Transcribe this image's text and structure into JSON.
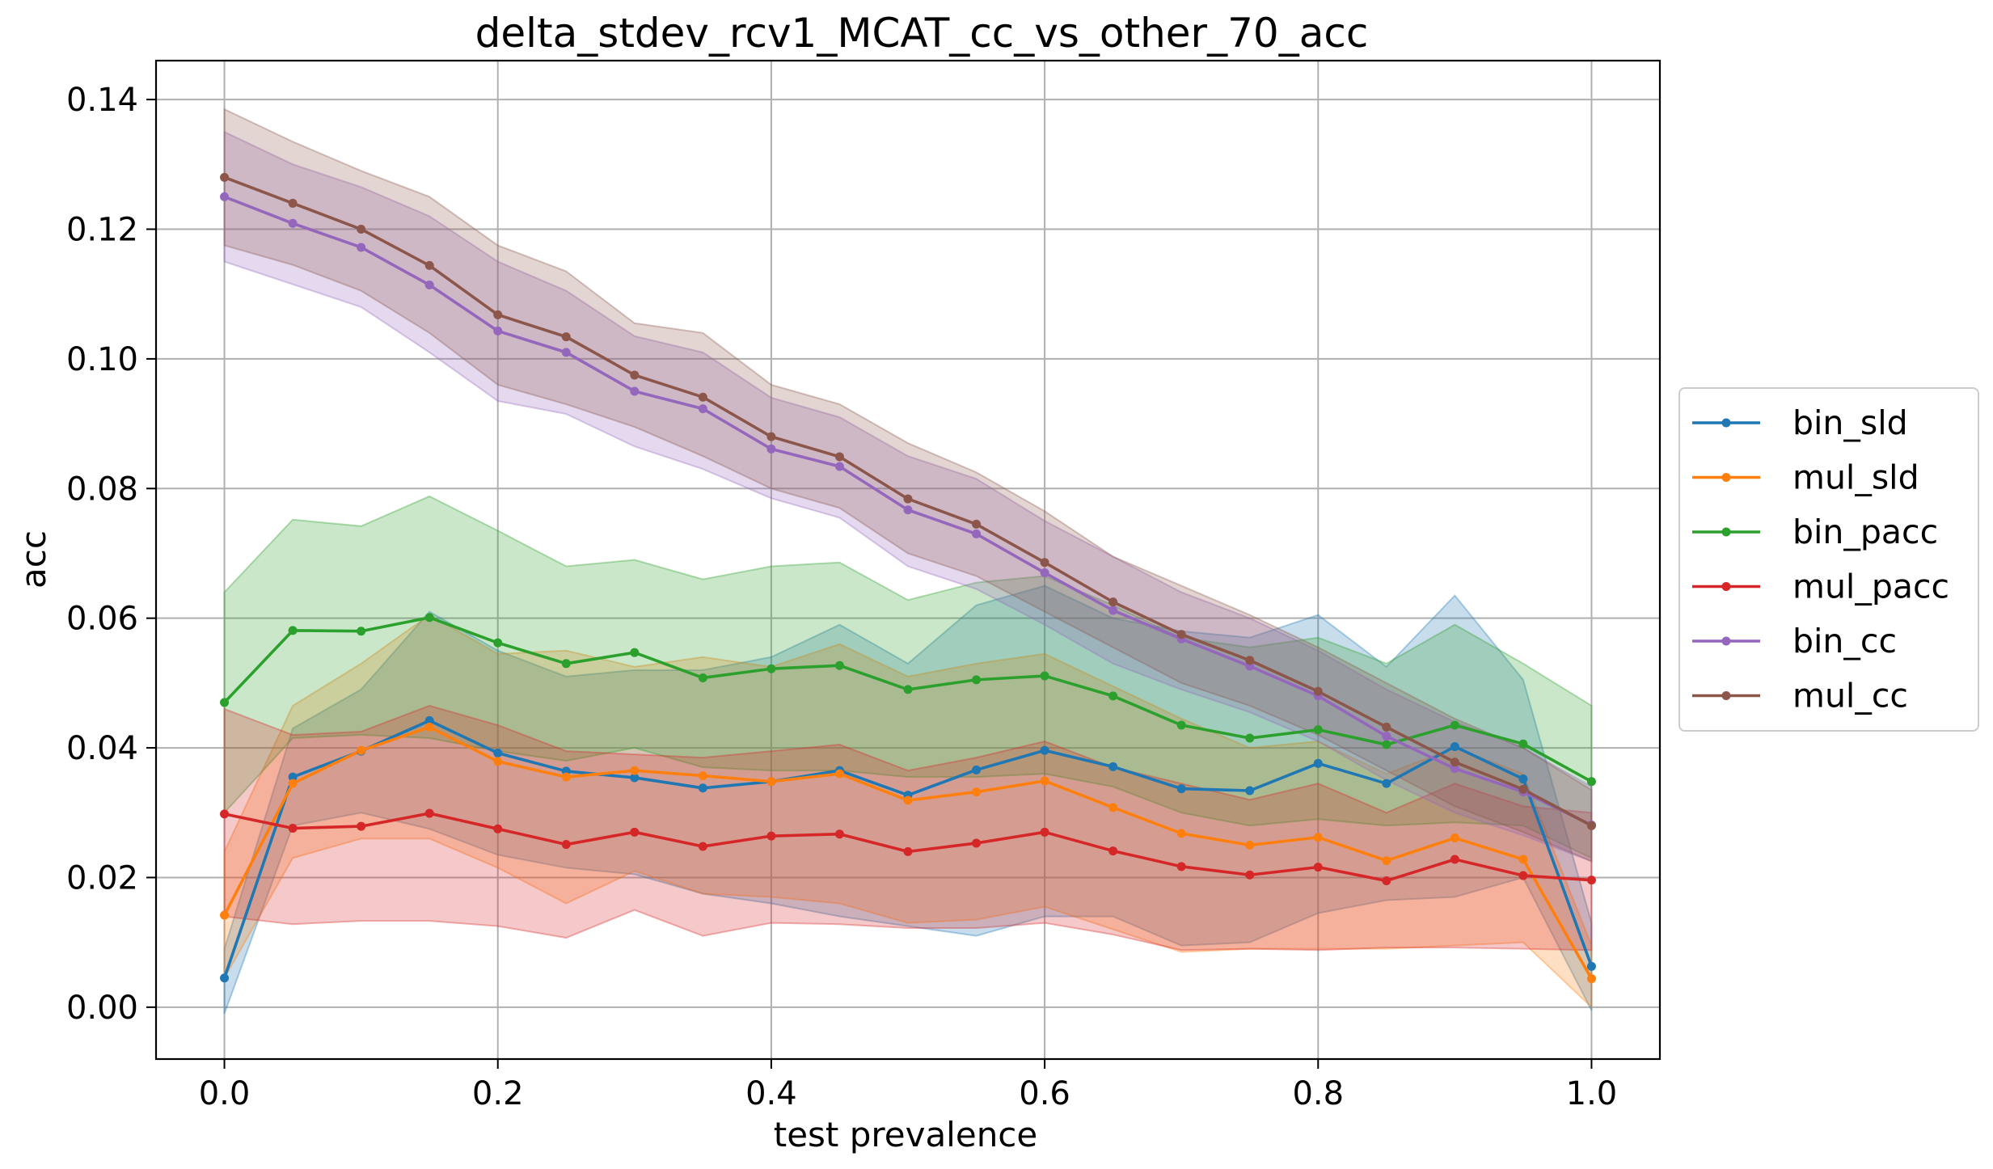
{
  "chart_data": {
    "type": "line",
    "title": "delta_stdev_rcv1_MCAT_cc_vs_other_70_acc",
    "xlabel": "test prevalence",
    "ylabel": "acc",
    "xlim": [
      -0.05,
      1.05
    ],
    "ylim": [
      -0.008,
      0.146
    ],
    "x_ticks": [
      0.0,
      0.2,
      0.4,
      0.6,
      0.8,
      1.0
    ],
    "x_tick_labels": [
      "0.0",
      "0.2",
      "0.4",
      "0.6",
      "0.8",
      "1.0"
    ],
    "y_ticks": [
      0.0,
      0.02,
      0.04,
      0.06,
      0.08,
      0.1,
      0.12,
      0.14
    ],
    "y_tick_labels": [
      "0.00",
      "0.02",
      "0.04",
      "0.06",
      "0.08",
      "0.10",
      "0.12",
      "0.14"
    ],
    "grid": true,
    "legend_position": "center-right, outside plot",
    "x": [
      0.0,
      0.05,
      0.1,
      0.15,
      0.2,
      0.25,
      0.3,
      0.35,
      0.4,
      0.45,
      0.5,
      0.55,
      0.6,
      0.65,
      0.7,
      0.75,
      0.8,
      0.85,
      0.9,
      0.95,
      1.0
    ],
    "series": [
      {
        "name": "bin_sld",
        "color": "#1f77b4",
        "values": [
          0.0045,
          0.0355,
          0.0395,
          0.0442,
          0.0392,
          0.0364,
          0.0354,
          0.0338,
          0.0348,
          0.0365,
          0.0327,
          0.0366,
          0.0396,
          0.0371,
          0.0337,
          0.0334,
          0.0376,
          0.0345,
          0.0402,
          0.0352,
          0.0063
        ],
        "upper": [
          0.009,
          0.043,
          0.049,
          0.061,
          0.055,
          0.051,
          0.052,
          0.052,
          0.054,
          0.059,
          0.053,
          0.062,
          0.065,
          0.06,
          0.058,
          0.057,
          0.0605,
          0.0525,
          0.0635,
          0.0505,
          0.013
        ],
        "lower": [
          -0.001,
          0.028,
          0.03,
          0.0275,
          0.0235,
          0.0215,
          0.0205,
          0.0175,
          0.016,
          0.014,
          0.0125,
          0.011,
          0.014,
          0.014,
          0.0095,
          0.01,
          0.0145,
          0.0165,
          0.017,
          0.02,
          -0.0005
        ]
      },
      {
        "name": "mul_sld",
        "color": "#ff7f0e",
        "values": [
          0.0142,
          0.0345,
          0.0396,
          0.0432,
          0.0379,
          0.0355,
          0.0365,
          0.0357,
          0.0348,
          0.036,
          0.0319,
          0.0332,
          0.0349,
          0.0308,
          0.0268,
          0.025,
          0.0262,
          0.0226,
          0.0261,
          0.0228,
          0.0044
        ],
        "upper": [
          0.024,
          0.0465,
          0.053,
          0.0605,
          0.0545,
          0.055,
          0.0525,
          0.054,
          0.0525,
          0.056,
          0.051,
          0.053,
          0.0545,
          0.0495,
          0.0445,
          0.04,
          0.041,
          0.036,
          0.04,
          0.036,
          0.0095
        ],
        "lower": [
          0.0045,
          0.023,
          0.026,
          0.026,
          0.0215,
          0.016,
          0.021,
          0.0175,
          0.017,
          0.016,
          0.013,
          0.0135,
          0.0155,
          0.012,
          0.0085,
          0.009,
          0.009,
          0.009,
          0.0095,
          0.01,
          0.0
        ]
      },
      {
        "name": "bin_pacc",
        "color": "#2ca02c",
        "values": [
          0.047,
          0.0581,
          0.058,
          0.0601,
          0.0562,
          0.053,
          0.0547,
          0.0508,
          0.0522,
          0.0527,
          0.049,
          0.0505,
          0.0511,
          0.048,
          0.0435,
          0.0415,
          0.0428,
          0.0405,
          0.0435,
          0.0406,
          0.0348
        ],
        "upper": [
          0.064,
          0.0752,
          0.0742,
          0.0788,
          0.0735,
          0.068,
          0.069,
          0.066,
          0.068,
          0.0686,
          0.0628,
          0.0655,
          0.0665,
          0.062,
          0.057,
          0.0555,
          0.057,
          0.053,
          0.059,
          0.053,
          0.0465
        ],
        "lower": [
          0.03,
          0.0415,
          0.042,
          0.0415,
          0.0395,
          0.038,
          0.04,
          0.037,
          0.0365,
          0.0365,
          0.0355,
          0.0355,
          0.036,
          0.034,
          0.03,
          0.028,
          0.029,
          0.028,
          0.0285,
          0.028,
          0.023
        ]
      },
      {
        "name": "mul_pacc",
        "color": "#d62728",
        "values": [
          0.0298,
          0.0276,
          0.0279,
          0.0299,
          0.0275,
          0.0251,
          0.027,
          0.0248,
          0.0264,
          0.0267,
          0.024,
          0.0253,
          0.027,
          0.0241,
          0.0217,
          0.0204,
          0.0216,
          0.0195,
          0.0228,
          0.0203,
          0.0196
        ],
        "upper": [
          0.046,
          0.042,
          0.0425,
          0.0465,
          0.0435,
          0.0395,
          0.039,
          0.0385,
          0.0395,
          0.0405,
          0.0365,
          0.0385,
          0.041,
          0.037,
          0.0345,
          0.032,
          0.0345,
          0.03,
          0.0345,
          0.031,
          0.03
        ],
        "lower": [
          0.014,
          0.0128,
          0.0133,
          0.0133,
          0.0125,
          0.0107,
          0.015,
          0.011,
          0.013,
          0.0128,
          0.0122,
          0.0122,
          0.013,
          0.0112,
          0.0088,
          0.009,
          0.0088,
          0.0092,
          0.0092,
          0.009,
          0.0088
        ]
      },
      {
        "name": "bin_cc",
        "color": "#9467bd",
        "values": [
          0.125,
          0.1209,
          0.1172,
          0.1114,
          0.1043,
          0.101,
          0.095,
          0.0923,
          0.0861,
          0.0834,
          0.0767,
          0.073,
          0.067,
          0.0612,
          0.0568,
          0.0526,
          0.048,
          0.0418,
          0.0368,
          0.0332,
          0.0281
        ],
        "upper": [
          0.135,
          0.13,
          0.1265,
          0.122,
          0.115,
          0.1105,
          0.1035,
          0.101,
          0.094,
          0.091,
          0.085,
          0.0815,
          0.075,
          0.0695,
          0.064,
          0.06,
          0.055,
          0.049,
          0.044,
          0.04,
          0.034
        ],
        "lower": [
          0.115,
          0.1115,
          0.108,
          0.101,
          0.0935,
          0.0915,
          0.0865,
          0.083,
          0.0785,
          0.0755,
          0.068,
          0.0645,
          0.059,
          0.053,
          0.049,
          0.0455,
          0.041,
          0.035,
          0.03,
          0.0265,
          0.0225
        ]
      },
      {
        "name": "mul_cc",
        "color": "#8c564b",
        "values": [
          0.128,
          0.124,
          0.12,
          0.1144,
          0.1068,
          0.1034,
          0.0975,
          0.0941,
          0.088,
          0.0849,
          0.0784,
          0.0745,
          0.0686,
          0.0625,
          0.0575,
          0.0535,
          0.0487,
          0.0432,
          0.0378,
          0.0336,
          0.028
        ],
        "upper": [
          0.1385,
          0.1335,
          0.129,
          0.125,
          0.1175,
          0.1135,
          0.1055,
          0.104,
          0.096,
          0.093,
          0.087,
          0.0825,
          0.0765,
          0.0695,
          0.065,
          0.0605,
          0.0555,
          0.05,
          0.0445,
          0.04,
          0.0335
        ],
        "lower": [
          0.1175,
          0.1145,
          0.1105,
          0.104,
          0.096,
          0.093,
          0.0895,
          0.085,
          0.08,
          0.077,
          0.07,
          0.0665,
          0.061,
          0.0555,
          0.05,
          0.0465,
          0.042,
          0.0365,
          0.031,
          0.027,
          0.0225
        ]
      }
    ]
  }
}
